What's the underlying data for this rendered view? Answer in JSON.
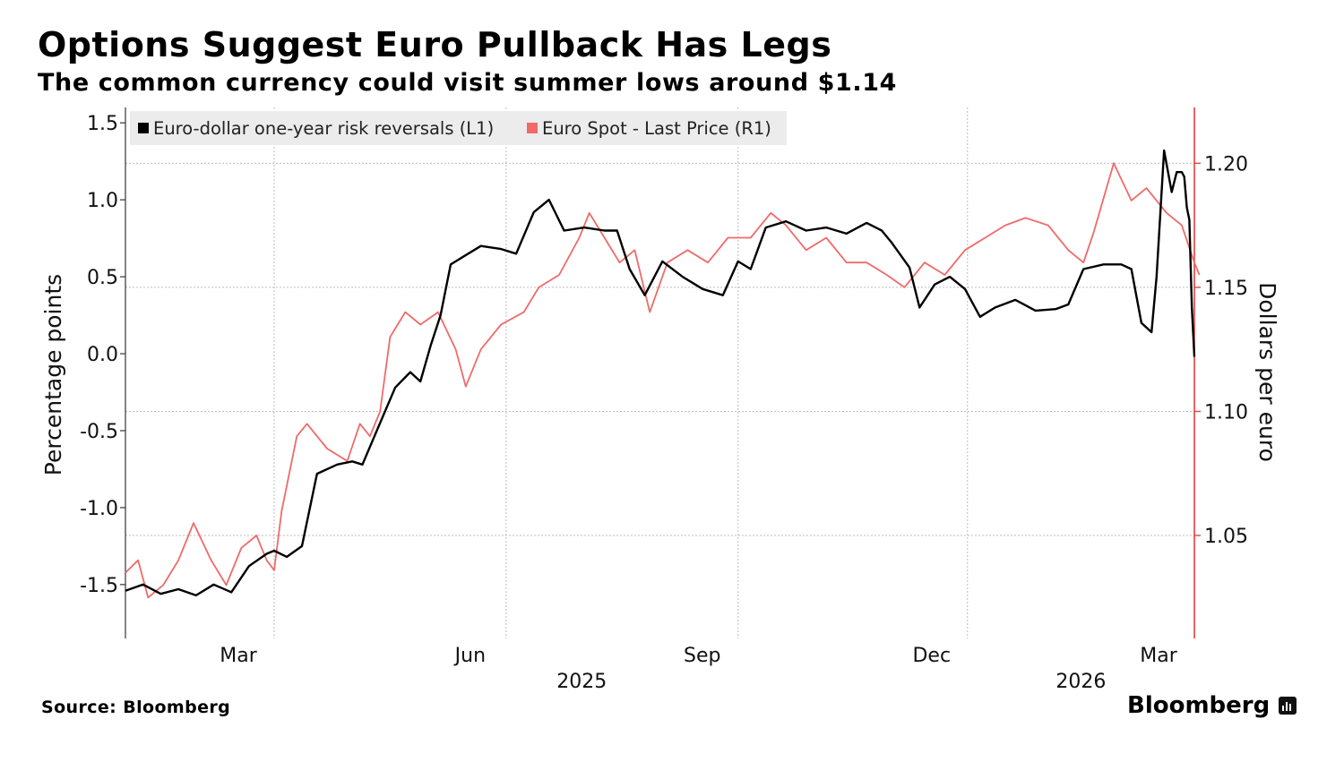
{
  "header": {
    "title": "Options Suggest Euro Pullback Has Legs",
    "subtitle": "The common currency could visit summer lows around $1.14"
  },
  "footer": {
    "source": "Source: Bloomberg",
    "brand": "Bloomberg"
  },
  "chart_data": {
    "type": "line",
    "title": "Options Suggest Euro Pullback Has Legs",
    "subtitle": "The common currency could visit summer lows around $1.14",
    "x_axis": {
      "ticks": [
        {
          "label": "Mar",
          "date": "2025-03-01"
        },
        {
          "label": "Jun",
          "date": "2025-06-01"
        },
        {
          "label": "Sep",
          "date": "2025-09-01"
        },
        {
          "label": "Dec",
          "date": "2025-12-01"
        },
        {
          "label": "Mar",
          "date": "2026-03-01"
        }
      ],
      "year_labels": [
        {
          "label": "2025",
          "date": "2025-07-01"
        },
        {
          "label": "2026",
          "date": "2026-01-15"
        }
      ],
      "range": [
        "2025-01-01",
        "2026-03-01"
      ]
    },
    "y_left": {
      "label": "Percentage points",
      "range": [
        -1.85,
        1.6
      ],
      "ticks": [
        {
          "label": "1.5",
          "value": 1.5
        },
        {
          "label": "1.0",
          "value": 1.0
        },
        {
          "label": "0.5",
          "value": 0.5
        },
        {
          "label": "0.0",
          "value": 0.0
        },
        {
          "label": "-0.5",
          "value": -0.5
        },
        {
          "label": "-1.0",
          "value": -1.0
        },
        {
          "label": "-1.5",
          "value": -1.5
        }
      ]
    },
    "y_right": {
      "label": "Dollars per euro",
      "range": [
        1.0085,
        1.2225
      ],
      "ticks": [
        {
          "label": "1.20",
          "value": 1.2
        },
        {
          "label": "1.15",
          "value": 1.15
        },
        {
          "label": "1.10",
          "value": 1.1
        },
        {
          "label": "1.05",
          "value": 1.05
        }
      ],
      "color": "#e5403f"
    },
    "legend": {
      "position": "top-left",
      "entries": [
        {
          "label": "Euro-dollar one-year risk reversals (L1)",
          "color": "#000000"
        },
        {
          "label": "Euro Spot - Last Price (R1)",
          "color": "#f06a6a"
        }
      ]
    },
    "series": [
      {
        "name": "Euro-dollar one-year risk reversals (L1)",
        "axis": "left",
        "color": "#000000",
        "points": [
          [
            "2025-01-01",
            -1.54
          ],
          [
            "2025-01-08",
            -1.5
          ],
          [
            "2025-01-15",
            -1.56
          ],
          [
            "2025-01-22",
            -1.53
          ],
          [
            "2025-01-29",
            -1.57
          ],
          [
            "2025-02-05",
            -1.5
          ],
          [
            "2025-02-12",
            -1.55
          ],
          [
            "2025-02-19",
            -1.38
          ],
          [
            "2025-02-26",
            -1.3
          ],
          [
            "2025-03-01",
            -1.28
          ],
          [
            "2025-03-06",
            -1.32
          ],
          [
            "2025-03-12",
            -1.25
          ],
          [
            "2025-03-18",
            -0.78
          ],
          [
            "2025-03-26",
            -0.72
          ],
          [
            "2025-04-01",
            -0.7
          ],
          [
            "2025-04-05",
            -0.72
          ],
          [
            "2025-04-12",
            -0.45
          ],
          [
            "2025-04-18",
            -0.22
          ],
          [
            "2025-04-24",
            -0.12
          ],
          [
            "2025-04-28",
            -0.18
          ],
          [
            "2025-05-02",
            0.05
          ],
          [
            "2025-05-06",
            0.25
          ],
          [
            "2025-05-10",
            0.58
          ],
          [
            "2025-05-15",
            0.63
          ],
          [
            "2025-05-22",
            0.7
          ],
          [
            "2025-05-30",
            0.68
          ],
          [
            "2025-06-05",
            0.65
          ],
          [
            "2025-06-12",
            0.92
          ],
          [
            "2025-06-18",
            1.0
          ],
          [
            "2025-06-24",
            0.8
          ],
          [
            "2025-07-02",
            0.82
          ],
          [
            "2025-07-10",
            0.8
          ],
          [
            "2025-07-15",
            0.8
          ],
          [
            "2025-07-20",
            0.55
          ],
          [
            "2025-07-26",
            0.38
          ],
          [
            "2025-08-02",
            0.6
          ],
          [
            "2025-08-10",
            0.5
          ],
          [
            "2025-08-18",
            0.42
          ],
          [
            "2025-08-26",
            0.38
          ],
          [
            "2025-09-01",
            0.6
          ],
          [
            "2025-09-06",
            0.55
          ],
          [
            "2025-09-12",
            0.82
          ],
          [
            "2025-09-20",
            0.86
          ],
          [
            "2025-09-28",
            0.8
          ],
          [
            "2025-10-06",
            0.82
          ],
          [
            "2025-10-14",
            0.78
          ],
          [
            "2025-10-22",
            0.85
          ],
          [
            "2025-10-28",
            0.8
          ],
          [
            "2025-11-01",
            0.72
          ],
          [
            "2025-11-08",
            0.56
          ],
          [
            "2025-11-12",
            0.3
          ],
          [
            "2025-11-18",
            0.45
          ],
          [
            "2025-11-24",
            0.5
          ],
          [
            "2025-11-30",
            0.42
          ],
          [
            "2025-12-06",
            0.24
          ],
          [
            "2025-12-12",
            0.3
          ],
          [
            "2025-12-20",
            0.35
          ],
          [
            "2025-12-28",
            0.28
          ],
          [
            "2026-01-05",
            0.29
          ],
          [
            "2026-01-10",
            0.32
          ],
          [
            "2026-01-16",
            0.55
          ],
          [
            "2026-01-24",
            0.58
          ],
          [
            "2026-01-31",
            0.58
          ],
          [
            "2026-02-04",
            0.55
          ],
          [
            "2026-02-08",
            0.2
          ],
          [
            "2026-02-12",
            0.14
          ],
          [
            "2026-02-14",
            0.5
          ],
          [
            "2026-02-17",
            1.32
          ],
          [
            "2026-02-20",
            1.05
          ],
          [
            "2026-02-22",
            1.18
          ],
          [
            "2026-02-24",
            1.18
          ],
          [
            "2026-02-25",
            1.15
          ],
          [
            "2026-02-26",
            0.95
          ],
          [
            "2026-02-27",
            0.87
          ],
          [
            "2026-02-28",
            0.3
          ],
          [
            "2026-03-01",
            -0.02
          ]
        ]
      },
      {
        "name": "Euro Spot - Last Price (R1)",
        "axis": "right",
        "color": "#f06a6a",
        "points": [
          [
            "2025-01-01",
            1.035
          ],
          [
            "2025-01-06",
            1.04
          ],
          [
            "2025-01-10",
            1.025
          ],
          [
            "2025-01-16",
            1.03
          ],
          [
            "2025-01-22",
            1.04
          ],
          [
            "2025-01-28",
            1.055
          ],
          [
            "2025-02-04",
            1.04
          ],
          [
            "2025-02-10",
            1.03
          ],
          [
            "2025-02-16",
            1.045
          ],
          [
            "2025-02-22",
            1.05
          ],
          [
            "2025-02-26",
            1.04
          ],
          [
            "2025-03-01",
            1.036
          ],
          [
            "2025-03-04",
            1.06
          ],
          [
            "2025-03-10",
            1.09
          ],
          [
            "2025-03-14",
            1.095
          ],
          [
            "2025-03-22",
            1.085
          ],
          [
            "2025-03-30",
            1.08
          ],
          [
            "2025-04-04",
            1.095
          ],
          [
            "2025-04-08",
            1.09
          ],
          [
            "2025-04-12",
            1.1
          ],
          [
            "2025-04-16",
            1.13
          ],
          [
            "2025-04-22",
            1.14
          ],
          [
            "2025-04-28",
            1.135
          ],
          [
            "2025-05-05",
            1.14
          ],
          [
            "2025-05-12",
            1.125
          ],
          [
            "2025-05-16",
            1.11
          ],
          [
            "2025-05-22",
            1.125
          ],
          [
            "2025-05-30",
            1.135
          ],
          [
            "2025-06-08",
            1.14
          ],
          [
            "2025-06-14",
            1.15
          ],
          [
            "2025-06-22",
            1.155
          ],
          [
            "2025-06-30",
            1.17
          ],
          [
            "2025-07-04",
            1.18
          ],
          [
            "2025-07-10",
            1.17
          ],
          [
            "2025-07-16",
            1.16
          ],
          [
            "2025-07-22",
            1.165
          ],
          [
            "2025-07-28",
            1.14
          ],
          [
            "2025-08-04",
            1.16
          ],
          [
            "2025-08-12",
            1.165
          ],
          [
            "2025-08-20",
            1.16
          ],
          [
            "2025-08-28",
            1.17
          ],
          [
            "2025-09-06",
            1.17
          ],
          [
            "2025-09-14",
            1.18
          ],
          [
            "2025-09-20",
            1.175
          ],
          [
            "2025-09-28",
            1.165
          ],
          [
            "2025-10-06",
            1.17
          ],
          [
            "2025-10-14",
            1.16
          ],
          [
            "2025-10-22",
            1.16
          ],
          [
            "2025-10-30",
            1.155
          ],
          [
            "2025-11-06",
            1.15
          ],
          [
            "2025-11-14",
            1.16
          ],
          [
            "2025-11-22",
            1.155
          ],
          [
            "2025-11-30",
            1.165
          ],
          [
            "2025-12-08",
            1.17
          ],
          [
            "2025-12-16",
            1.175
          ],
          [
            "2025-12-24",
            1.178
          ],
          [
            "2026-01-02",
            1.175
          ],
          [
            "2026-01-10",
            1.165
          ],
          [
            "2026-01-16",
            1.16
          ],
          [
            "2026-01-20",
            1.172
          ],
          [
            "2026-01-28",
            1.2
          ],
          [
            "2026-02-04",
            1.185
          ],
          [
            "2026-02-10",
            1.19
          ],
          [
            "2026-02-18",
            1.18
          ],
          [
            "2026-02-24",
            1.175
          ],
          [
            "2026-03-01",
            1.16
          ],
          [
            "2026-03-03",
            1.155
          ]
        ]
      }
    ]
  }
}
